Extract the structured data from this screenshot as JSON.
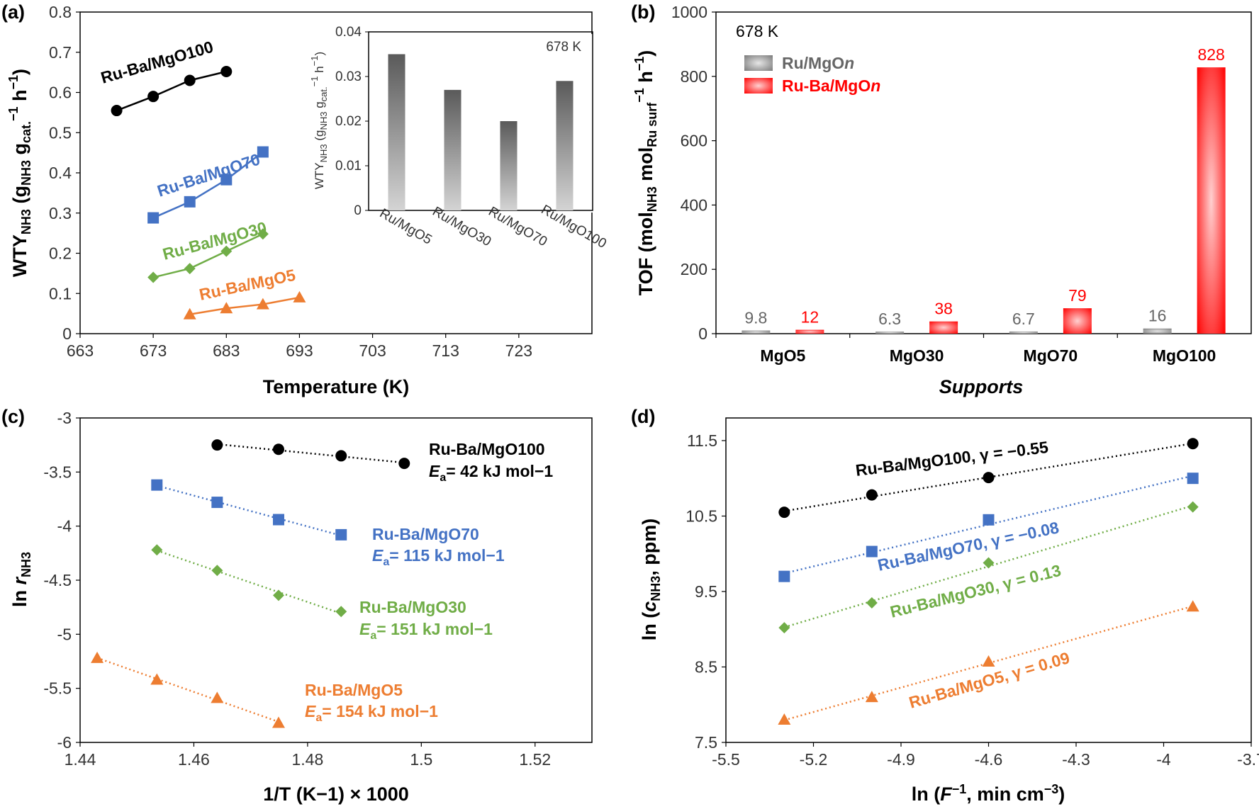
{
  "chart_data": [
    {
      "id": "a",
      "type": "line",
      "panel_label": "(a)",
      "xlabel": "Temperature (K)",
      "ylabel": "WTYNH3 (gNH3 gcat.−1 h−1)",
      "xlim": [
        663,
        733
      ],
      "ylim": [
        0,
        0.8
      ],
      "xticks": [
        663,
        673,
        683,
        693,
        703,
        713,
        723
      ],
      "yticks": [
        0,
        0.1,
        0.2,
        0.3,
        0.4,
        0.5,
        0.6,
        0.7,
        0.8
      ],
      "grid": false,
      "series": [
        {
          "name": "Ru-Ba/MgO100",
          "color": "#000000",
          "marker": "circle",
          "x": [
            668,
            673,
            678,
            683
          ],
          "y": [
            0.555,
            0.59,
            0.63,
            0.652
          ]
        },
        {
          "name": "Ru-Ba/MgO70",
          "color": "#4472c4",
          "marker": "square",
          "x": [
            673,
            678,
            683,
            688
          ],
          "y": [
            0.288,
            0.328,
            0.383,
            0.452
          ]
        },
        {
          "name": "Ru-Ba/MgO30",
          "color": "#70ad47",
          "marker": "diamond",
          "x": [
            673,
            678,
            683,
            688
          ],
          "y": [
            0.14,
            0.162,
            0.205,
            0.248
          ]
        },
        {
          "name": "Ru-Ba/MgO5",
          "color": "#ed7d31",
          "marker": "triangle",
          "x": [
            678,
            683,
            688,
            693
          ],
          "y": [
            0.048,
            0.063,
            0.073,
            0.09
          ]
        }
      ],
      "inset": {
        "type": "bar",
        "annotation": "678 K",
        "ylabel": "WTYNH3 (gNH3 gcat.−1 h−1)",
        "categories": [
          "Ru/MgO5",
          "Ru/MgO30",
          "Ru/MgO70",
          "Ru/MgO100"
        ],
        "values": [
          0.035,
          0.027,
          0.02,
          0.029
        ],
        "ylim": [
          0,
          0.04
        ],
        "yticks": [
          "0",
          "0.01",
          "0.02",
          "0.03",
          "0.04"
        ],
        "color": "#666666"
      }
    },
    {
      "id": "b",
      "type": "bar",
      "panel_label": "(b)",
      "annotation": "678 K",
      "xlabel": "Supports",
      "ylabel": "TOF (molNH3 molRu surf−1 h−1)",
      "categories": [
        "MgO5",
        "MgO30",
        "MgO70",
        "MgO100"
      ],
      "ylim": [
        0,
        1000
      ],
      "yticks": [
        0,
        200,
        400,
        600,
        800,
        1000
      ],
      "legend": "top-left",
      "series": [
        {
          "name": "Ru/MgOn",
          "color": "#888888",
          "values": [
            9.8,
            6.3,
            6.7,
            16
          ],
          "labels": [
            "9.8",
            "6.3",
            "6.7",
            "16"
          ]
        },
        {
          "name": "Ru-Ba/MgOn",
          "color": "#ff0000",
          "values": [
            12,
            38,
            79,
            828
          ],
          "labels": [
            "12",
            "38",
            "79",
            "828"
          ]
        }
      ]
    },
    {
      "id": "c",
      "type": "scatter",
      "panel_label": "(c)",
      "xlabel": "1/T (K−1) × 1000",
      "ylabel": "ln rNH3",
      "xlim": [
        1.44,
        1.53
      ],
      "ylim": [
        -6,
        -3
      ],
      "xticks": [
        "1.44",
        "1.46",
        "1.48",
        "1.5",
        "1.52"
      ],
      "yticks": [
        "-3",
        "-3.5",
        "-4",
        "-4.5",
        "-5",
        "-5.5",
        "-6"
      ],
      "series": [
        {
          "name": "Ru-Ba/MgO100",
          "ea": "= 42 kJ mol−1",
          "color": "#000000",
          "marker": "circle",
          "x": [
            1.4641,
            1.4749,
            1.4859,
            1.497
          ],
          "y": [
            -3.25,
            -3.29,
            -3.35,
            -3.42
          ]
        },
        {
          "name": "Ru-Ba/MgO70",
          "ea": "= 115 kJ mol−1",
          "color": "#4472c4",
          "marker": "square",
          "x": [
            1.4535,
            1.4641,
            1.4749,
            1.4859
          ],
          "y": [
            -3.62,
            -3.78,
            -3.94,
            -4.08
          ]
        },
        {
          "name": "Ru-Ba/MgO30",
          "ea": "= 151 kJ mol−1",
          "color": "#70ad47",
          "marker": "diamond",
          "x": [
            1.4535,
            1.4641,
            1.4749,
            1.4859
          ],
          "y": [
            -4.22,
            -4.41,
            -4.64,
            -4.79
          ]
        },
        {
          "name": "Ru-Ba/MgO5",
          "ea": "= 154 kJ mol−1",
          "color": "#ed7d31",
          "marker": "triangle",
          "x": [
            1.443,
            1.4535,
            1.4641,
            1.4749
          ],
          "y": [
            -5.22,
            -5.42,
            -5.59,
            -5.82
          ]
        }
      ]
    },
    {
      "id": "d",
      "type": "scatter",
      "panel_label": "(d)",
      "xlabel": "ln (F−1, min cm−3)",
      "ylabel": "ln (cNH3, ppm)",
      "xlim": [
        -5.5,
        -3.7
      ],
      "ylim": [
        7.5,
        11.8
      ],
      "xticks": [
        "-5.5",
        "-5.2",
        "-4.9",
        "-4.6",
        "-4.3",
        "-4",
        "-3.7"
      ],
      "yticks": [
        "7.5",
        "8.5",
        "9.5",
        "10.5",
        "11.5"
      ],
      "series": [
        {
          "name": "Ru-Ba/MgO100, γ = −0.55",
          "color": "#000000",
          "marker": "circle",
          "x": [
            -5.3,
            -5.0,
            -4.6,
            -3.9
          ],
          "y": [
            10.55,
            10.78,
            11.01,
            11.46
          ]
        },
        {
          "name": "Ru-Ba/MgO70, γ = −0.08",
          "color": "#4472c4",
          "marker": "square",
          "x": [
            -5.3,
            -5.0,
            -4.6,
            -3.9
          ],
          "y": [
            9.7,
            10.03,
            10.45,
            11.0
          ]
        },
        {
          "name": "Ru-Ba/MgO30, γ = 0.13",
          "color": "#70ad47",
          "marker": "diamond",
          "x": [
            -5.3,
            -5.0,
            -4.6,
            -3.9
          ],
          "y": [
            9.02,
            9.35,
            9.88,
            10.62
          ]
        },
        {
          "name": "Ru-Ba/MgO5, γ = 0.09",
          "color": "#ed7d31",
          "marker": "triangle",
          "x": [
            -5.3,
            -5.0,
            -4.6,
            -3.9
          ],
          "y": [
            7.8,
            8.1,
            8.57,
            9.3
          ]
        }
      ]
    }
  ]
}
